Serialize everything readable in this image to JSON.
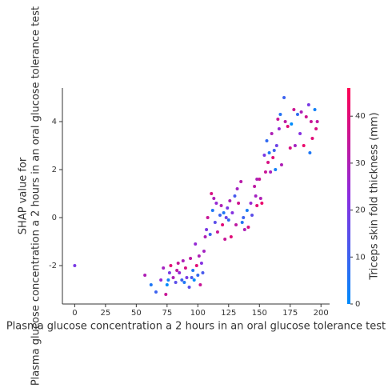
{
  "chart_data": {
    "type": "scatter",
    "xlabel": "Plasma glucose concentration a 2 hours in an oral glucose tolerance test",
    "ylabel": [
      "SHAP value for",
      "Plasma glucose concentration a 2 hours in an oral glucose tolerance test"
    ],
    "colorbar_label": "Triceps skin fold thickness (mm)",
    "xlim": [
      -10,
      207
    ],
    "xticks": [
      0,
      25,
      50,
      75,
      100,
      125,
      150,
      175,
      200
    ],
    "ylim": [
      -3.6,
      5.4
    ],
    "yticks": [
      -2,
      0,
      2,
      4
    ],
    "clim": [
      0,
      46
    ],
    "cticks": [
      0,
      10,
      20,
      30,
      40
    ],
    "colormap": [
      "#008bfb",
      "#8b2de0",
      "#ff0052"
    ],
    "x": [
      0,
      57,
      62,
      66,
      70,
      72,
      74,
      75,
      77,
      78,
      80,
      82,
      84,
      85,
      87,
      88,
      90,
      91,
      93,
      94,
      96,
      97,
      98,
      99,
      100,
      101,
      102,
      103,
      104,
      105,
      106,
      76,
      89,
      95,
      83,
      107,
      108,
      110,
      111,
      112,
      113,
      114,
      115,
      116,
      118,
      119,
      120,
      121,
      122,
      124,
      125,
      126,
      127,
      128,
      130,
      131,
      132,
      133,
      135,
      137,
      138,
      140,
      141,
      143,
      144,
      146,
      147,
      148,
      150,
      136,
      123,
      151,
      152,
      154,
      155,
      156,
      157,
      158,
      159,
      160,
      161,
      162,
      163,
      165,
      166,
      167,
      168,
      170,
      171,
      173,
      175,
      176,
      178,
      179,
      181,
      183,
      184,
      186,
      188,
      190,
      191,
      192,
      193,
      195,
      196,
      197,
      148,
      164
    ],
    "values": [
      -2,
      -2.4,
      -2.8,
      -3.1,
      -2.6,
      -2.1,
      -3.2,
      -2.8,
      -2.3,
      -2.0,
      -2.5,
      -2.7,
      -1.9,
      -2.3,
      -2.6,
      -1.8,
      -2.1,
      -2.5,
      -2.9,
      -1.7,
      -2.2,
      -2.6,
      -1.1,
      -2.0,
      -2.4,
      -1.6,
      -2.8,
      -1.9,
      -2.3,
      -1.4,
      -0.8,
      -2.6,
      -2.7,
      -2.5,
      -2.2,
      -0.5,
      0,
      -0.7,
      1.0,
      0.3,
      0.8,
      -0.2,
      0.6,
      -0.6,
      0.1,
      0.5,
      -0.3,
      0.2,
      -0.9,
      0.4,
      -0.1,
      0.7,
      -0.8,
      0.2,
      0.9,
      -0.3,
      1.2,
      0.6,
      1.5,
      0.0,
      -0.5,
      0.3,
      -0.4,
      0.6,
      0.1,
      1.3,
      0.9,
      0.5,
      1.6,
      -0.2,
      0.0,
      0.8,
      0.6,
      2.6,
      1.9,
      3.2,
      2.3,
      2.7,
      1.9,
      3.5,
      2.5,
      2.8,
      2.0,
      4.1,
      3.7,
      4.3,
      2.2,
      5.0,
      4.0,
      3.8,
      2.9,
      3.9,
      4.5,
      3.0,
      4.3,
      3.5,
      4.4,
      3.0,
      4.2,
      4.7,
      2.7,
      4.0,
      3.3,
      4.5,
      3.7,
      4.0,
      1.6,
      3.0
    ],
    "color_values": [
      20,
      30,
      5,
      10,
      25,
      28,
      35,
      0,
      20,
      40,
      30,
      15,
      35,
      25,
      10,
      30,
      38,
      20,
      15,
      33,
      5,
      0,
      25,
      40,
      8,
      30,
      35,
      22,
      12,
      28,
      30,
      3,
      5,
      12,
      33,
      20,
      35,
      10,
      38,
      5,
      30,
      15,
      25,
      35,
      10,
      30,
      40,
      5,
      35,
      20,
      8,
      30,
      40,
      22,
      12,
      33,
      28,
      36,
      32,
      10,
      30,
      4,
      38,
      25,
      15,
      33,
      28,
      40,
      35,
      6,
      18,
      30,
      42,
      20,
      35,
      8,
      38,
      5,
      28,
      30,
      40,
      10,
      3,
      35,
      25,
      6,
      30,
      10,
      33,
      40,
      38,
      0,
      36,
      28,
      8,
      22,
      30,
      42,
      36,
      20,
      5,
      35,
      40,
      3,
      38,
      33,
      30,
      18
    ]
  }
}
